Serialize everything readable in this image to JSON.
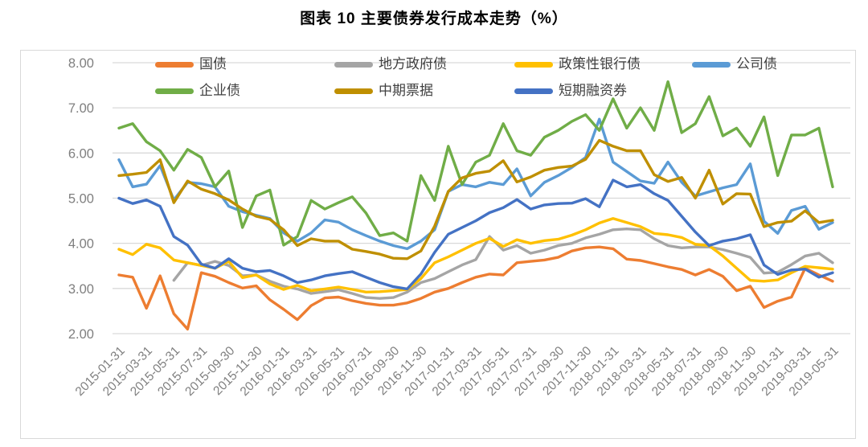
{
  "title": "图表 10 主要债券发行成本走势（%）",
  "chart_data": {
    "type": "line",
    "title": "图表 10 主要债券发行成本走势（%）",
    "ylim": [
      2.0,
      8.0
    ],
    "y_tick_step": 1.0,
    "y_tick_labels": [
      "2.00",
      "3.00",
      "4.00",
      "5.00",
      "6.00",
      "7.00",
      "8.00"
    ],
    "grid": "horizontal",
    "legend_position": "top",
    "x_points_per_tick": 2,
    "x_tick_labels": [
      "2015-01-31",
      "2015-03-31",
      "2015-05-31",
      "2015-07-31",
      "2015-09-30",
      "2015-11-30",
      "2016-01-31",
      "2016-03-31",
      "2016-05-31",
      "2016-07-31",
      "2016-09-30",
      "2016-11-30",
      "2017-01-31",
      "2017-03-31",
      "2017-05-31",
      "2017-07-31",
      "2017-09-30",
      "2017-11-30",
      "2018-01-31",
      "2018-03-31",
      "2018-05-31",
      "2018-07-31",
      "2018-09-30",
      "2018-11-30",
      "2019-01-31",
      "2019-03-31",
      "2019-05-31"
    ],
    "series": [
      {
        "name": "国债",
        "key": "treasury-bond",
        "color": "#ED7D31",
        "values": [
          3.3,
          3.25,
          2.56,
          3.28,
          2.44,
          2.1,
          3.35,
          3.27,
          3.13,
          3.01,
          3.06,
          2.75,
          2.54,
          2.31,
          2.62,
          2.79,
          2.81,
          2.73,
          2.67,
          2.63,
          2.63,
          2.68,
          2.78,
          2.92,
          3.0,
          3.13,
          3.25,
          3.32,
          3.3,
          3.57,
          3.6,
          3.63,
          3.69,
          3.83,
          3.9,
          3.92,
          3.88,
          3.65,
          3.62,
          3.55,
          3.48,
          3.42,
          3.3,
          3.42,
          3.27,
          2.95,
          3.05,
          2.58,
          2.72,
          2.81,
          3.45,
          3.3,
          3.16
        ]
      },
      {
        "name": "地方政府债",
        "key": "local-government-bond",
        "color": "#A5A5A5",
        "values": [
          null,
          null,
          null,
          null,
          3.18,
          3.57,
          3.51,
          3.6,
          3.51,
          3.28,
          3.3,
          3.16,
          3.05,
          2.99,
          2.89,
          2.93,
          2.97,
          2.89,
          2.8,
          2.78,
          2.8,
          2.92,
          3.13,
          3.22,
          3.37,
          3.52,
          3.64,
          4.15,
          3.85,
          3.95,
          3.78,
          3.85,
          3.95,
          4.0,
          4.12,
          4.2,
          4.3,
          4.32,
          4.3,
          4.1,
          3.95,
          3.9,
          3.92,
          3.92,
          3.86,
          3.78,
          3.69,
          3.34,
          3.36,
          3.53,
          3.72,
          3.78,
          3.57
        ]
      },
      {
        "name": "政策性银行债",
        "key": "policy-bank-bond",
        "color": "#FFC000",
        "values": [
          3.87,
          3.75,
          3.98,
          3.9,
          3.63,
          3.57,
          3.51,
          3.45,
          3.6,
          3.24,
          3.3,
          3.1,
          2.98,
          3.07,
          2.95,
          2.99,
          3.03,
          2.98,
          2.92,
          2.93,
          2.95,
          2.98,
          3.22,
          3.57,
          3.7,
          3.85,
          4.0,
          4.11,
          3.93,
          4.08,
          4.0,
          4.06,
          4.09,
          4.18,
          4.3,
          4.45,
          4.55,
          4.46,
          4.37,
          4.22,
          4.19,
          4.13,
          3.98,
          3.95,
          3.72,
          3.45,
          3.18,
          3.16,
          3.19,
          3.35,
          3.49,
          3.46,
          3.43
        ]
      },
      {
        "name": "公司债",
        "key": "corporate-bond",
        "color": "#5B9BD5",
        "values": [
          5.85,
          5.25,
          5.31,
          5.72,
          4.96,
          5.35,
          5.32,
          5.25,
          4.82,
          4.7,
          4.62,
          4.55,
          4.23,
          4.05,
          4.23,
          4.52,
          4.47,
          4.3,
          4.17,
          4.05,
          3.95,
          3.88,
          4.05,
          4.3,
          5.15,
          5.3,
          5.25,
          5.35,
          5.3,
          5.65,
          5.05,
          5.35,
          5.5,
          5.68,
          5.9,
          6.75,
          5.8,
          5.59,
          5.38,
          5.33,
          5.8,
          5.35,
          5.05,
          5.14,
          5.23,
          5.3,
          5.76,
          4.49,
          4.22,
          4.73,
          4.82,
          4.31,
          4.46
        ]
      },
      {
        "name": "企业债",
        "key": "enterprise-bond",
        "color": "#70AD47",
        "values": [
          6.55,
          6.65,
          6.25,
          6.05,
          5.62,
          6.08,
          5.9,
          5.25,
          5.6,
          4.35,
          5.05,
          5.18,
          3.96,
          4.15,
          4.95,
          4.76,
          4.9,
          5.03,
          4.67,
          4.17,
          4.23,
          4.05,
          5.5,
          4.95,
          6.15,
          5.3,
          5.8,
          5.95,
          6.65,
          6.05,
          5.95,
          6.35,
          6.5,
          6.7,
          6.85,
          6.5,
          7.2,
          6.55,
          7.0,
          6.5,
          7.58,
          6.45,
          6.65,
          7.25,
          6.38,
          6.55,
          6.15,
          6.8,
          5.5,
          6.4,
          6.4,
          6.55,
          5.25
        ]
      },
      {
        "name": "中期票据",
        "key": "medium-term-note",
        "color": "#BF8F00",
        "values": [
          5.5,
          5.53,
          5.57,
          5.85,
          4.9,
          5.38,
          5.2,
          5.1,
          4.96,
          4.76,
          4.6,
          4.53,
          4.3,
          3.95,
          4.1,
          4.05,
          4.05,
          3.87,
          3.82,
          3.76,
          3.67,
          3.66,
          3.83,
          4.38,
          5.15,
          5.45,
          5.55,
          5.6,
          5.83,
          5.36,
          5.47,
          5.62,
          5.68,
          5.71,
          5.86,
          6.28,
          6.15,
          6.05,
          6.05,
          5.52,
          5.37,
          5.46,
          5.0,
          5.62,
          4.87,
          5.1,
          5.09,
          4.37,
          4.46,
          4.49,
          4.72,
          4.46,
          4.51
        ]
      },
      {
        "name": "短期融资券",
        "key": "short-term-financing-bill",
        "color": "#4472C4",
        "values": [
          5.0,
          4.88,
          4.96,
          4.82,
          4.15,
          3.96,
          3.54,
          3.45,
          3.66,
          3.45,
          3.37,
          3.4,
          3.28,
          3.13,
          3.19,
          3.28,
          3.33,
          3.37,
          3.25,
          3.13,
          3.04,
          2.99,
          3.32,
          3.8,
          4.2,
          4.35,
          4.5,
          4.68,
          4.79,
          4.97,
          4.76,
          4.85,
          4.88,
          4.89,
          4.99,
          4.81,
          5.4,
          5.25,
          5.3,
          5.1,
          4.95,
          4.6,
          4.25,
          3.95,
          4.05,
          4.1,
          4.19,
          3.52,
          3.31,
          3.41,
          3.43,
          3.25,
          3.35
        ]
      }
    ],
    "colors": {
      "grid": "#D9D9D9",
      "axis_text": "#7F7F7F",
      "legend_text": "#404040",
      "frame": "#D9D9D9"
    }
  }
}
